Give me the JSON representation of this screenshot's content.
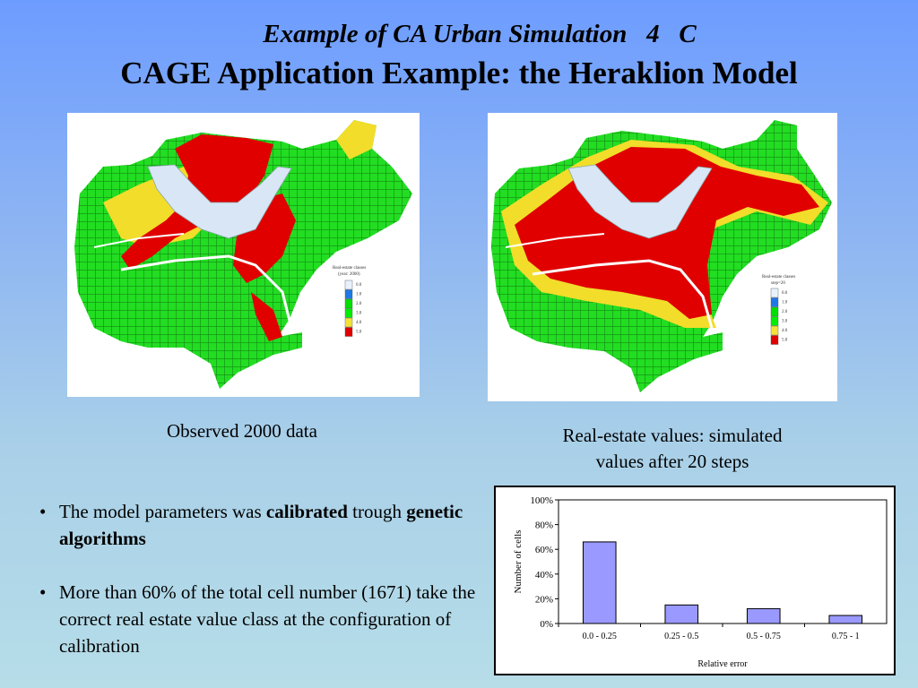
{
  "header": {
    "subtitle": "Example of CA Urban Simulation   4   C",
    "title": "CAGE Application Example: the Heraklion Model"
  },
  "maps": {
    "left": {
      "caption": "Observed 2000 data",
      "legend_title": "Real-estate classes",
      "legend_subtitle": "(year: 2000)",
      "legend_items": [
        "0.0",
        "1.0",
        "2.0",
        "3.0",
        "4.0",
        "5.0"
      ]
    },
    "right": {
      "caption_line1": "Real-estate values: simulated",
      "caption_line2": "values after 20 steps",
      "legend_title": "Real-estate classes",
      "legend_subtitle": "step=20",
      "legend_items": [
        "0.0",
        "1.0",
        "2.0",
        "3.0",
        "4.0",
        "5.0"
      ]
    },
    "legend_colors": [
      "#e8f2ff",
      "#1e78e6",
      "#00e000",
      "#00ee00",
      "#f2e23a",
      "#e00000"
    ],
    "class_colors": {
      "green": "#22dd22",
      "yellow": "#f2dd2a",
      "red": "#e00000",
      "water": "#d9e6f5"
    }
  },
  "bullets": {
    "item1": {
      "t1": "The model parameters was ",
      "b1": "calibrated",
      "t2": " trough ",
      "b2": "genetic algorithms"
    },
    "item2": "More than 60% of the total cell number (1671) take the correct real estate value class at the configuration of calibration",
    "marker": "•"
  },
  "chart_data": {
    "type": "bar",
    "categories": [
      "0.0 - 0.25",
      "0.25 - 0.5",
      "0.5 - 0.75",
      "0.75 - 1"
    ],
    "values": [
      66,
      15,
      12,
      6.5
    ],
    "xlabel": "Relative error",
    "ylabel": "Number of cells",
    "ylim": [
      0,
      100
    ],
    "yticks": [
      "0%",
      "20%",
      "40%",
      "60%",
      "80%",
      "100%"
    ],
    "grid": false,
    "bar_color": "#9999ff",
    "unit": "percent"
  }
}
